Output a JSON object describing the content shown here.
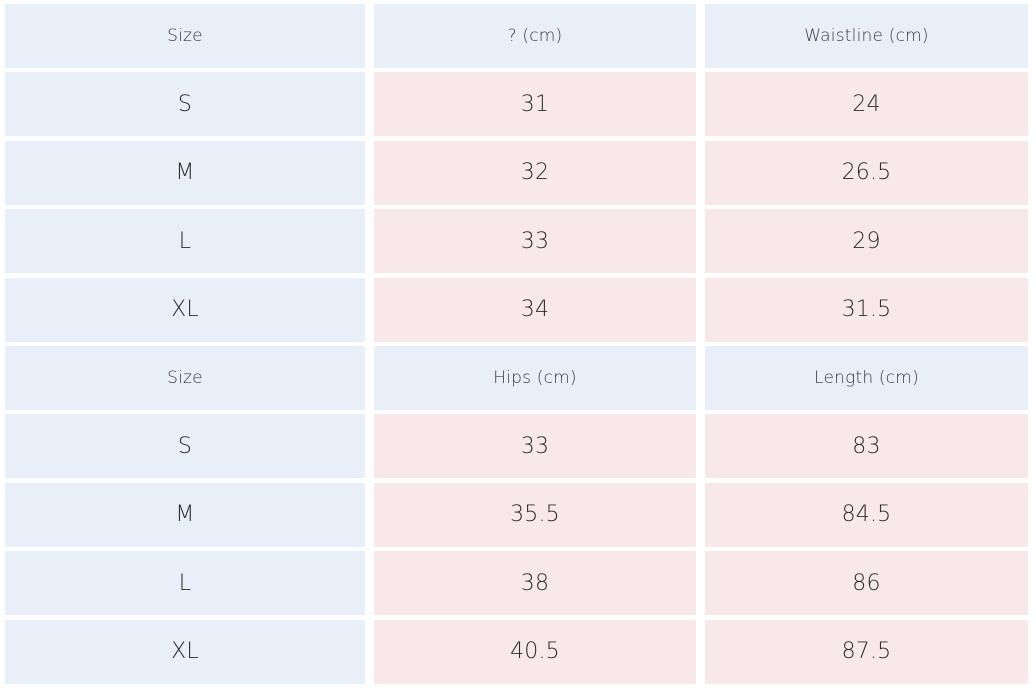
{
  "colors": {
    "header_bg": "#e8eff8",
    "size_bg": "#e8eff8",
    "value_bg": "#f8e8ea",
    "text": "#2b2b2b"
  },
  "tables": [
    {
      "headers": [
        "Size",
        "? (cm)",
        "Waistline (cm)"
      ],
      "rows": [
        [
          "S",
          "31",
          "24"
        ],
        [
          "M",
          "32",
          "26.5"
        ],
        [
          "L",
          "33",
          "29"
        ],
        [
          "XL",
          "34",
          "31.5"
        ]
      ]
    },
    {
      "headers": [
        "Size",
        "Hips (cm)",
        "Length (cm)"
      ],
      "rows": [
        [
          "S",
          "33",
          "83"
        ],
        [
          "M",
          "35.5",
          "84.5"
        ],
        [
          "L",
          "38",
          "86"
        ],
        [
          "XL",
          "40.5",
          "87.5"
        ]
      ]
    }
  ]
}
